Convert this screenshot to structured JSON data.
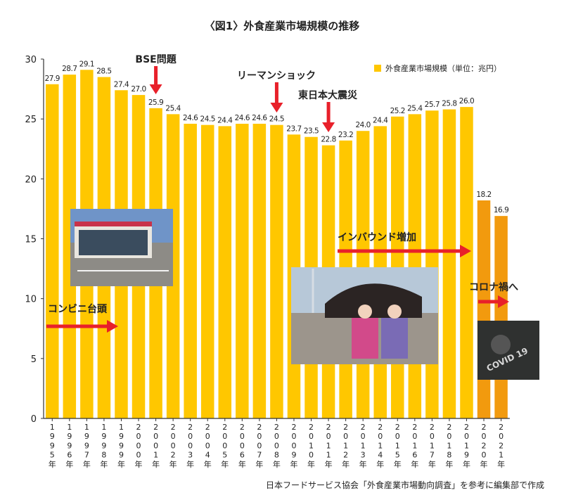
{
  "chart_data": {
    "type": "bar",
    "title": "〈図1〉外食産業市場規模の推移",
    "categories": [
      "1995年",
      "1996年",
      "1997年",
      "1998年",
      "1999年",
      "2000年",
      "2001年",
      "2002年",
      "2003年",
      "2004年",
      "2005年",
      "2006年",
      "2007年",
      "2008年",
      "2009年",
      "2010年",
      "2011年",
      "2012年",
      "2013年",
      "2014年",
      "2015年",
      "2016年",
      "2017年",
      "2018年",
      "2019年",
      "2020年",
      "2021年"
    ],
    "values": [
      27.9,
      28.7,
      29.1,
      28.5,
      27.4,
      27.0,
      25.9,
      25.4,
      24.6,
      24.5,
      24.4,
      24.6,
      24.6,
      24.5,
      23.7,
      23.5,
      22.8,
      23.2,
      24.0,
      24.4,
      25.2,
      25.4,
      25.7,
      25.8,
      26.0,
      18.2,
      16.9
    ],
    "value_labels": [
      "27.9",
      "28.7",
      "29.1",
      "28.5",
      "27.4",
      "27.0",
      "25.9",
      "25.4",
      "24.6",
      "24.5",
      "24.4",
      "24.6",
      "24.6",
      "24.5",
      "23.7",
      "23.5",
      "22.8",
      "23.2",
      "24.0",
      "24.4",
      "25.2",
      "25.4",
      "25.7",
      "25.8",
      "26.0",
      "18.2",
      "16.9"
    ],
    "series": [
      {
        "name": "外食産業市場規模（単位：兆円）"
      }
    ],
    "ylim": [
      0,
      30
    ],
    "yticks": [
      0,
      5,
      10,
      15,
      20,
      25,
      30
    ],
    "colors": {
      "main": "#FFC700",
      "covid": "#F29A0E",
      "arrow": "#E8202A"
    },
    "legend_position": "top-right",
    "grid": false,
    "source": "日本フードサービス協会「外食産業市場動向調査」を参考に編集部で作成",
    "annotations": [
      {
        "label": "BSE問題",
        "category": "2001年",
        "kind": "down-arrow"
      },
      {
        "label": "リーマンショック",
        "category": "2008年",
        "kind": "down-arrow"
      },
      {
        "label": "東日本大震災",
        "category": "2011年",
        "kind": "down-arrow"
      },
      {
        "label": "コンビニ台頭",
        "kind": "right-arrow"
      },
      {
        "label": "インバウンド増加",
        "kind": "right-arrow"
      },
      {
        "label": "コロナ禍へ",
        "kind": "right-arrow"
      }
    ],
    "covid_image_text": "COVID 19"
  }
}
